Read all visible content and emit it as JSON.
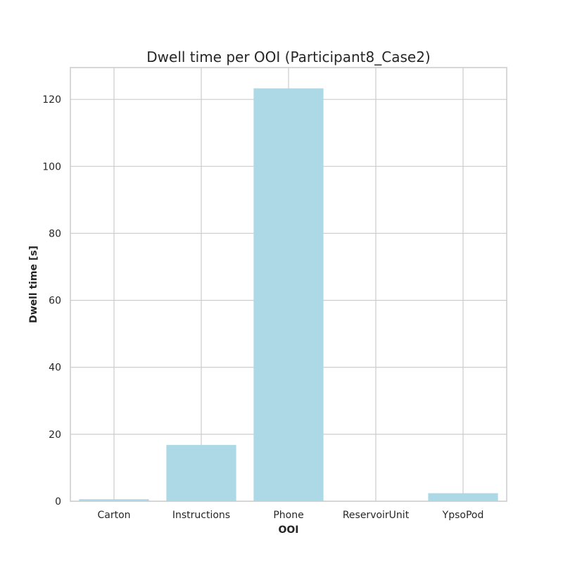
{
  "chart_data": {
    "type": "bar",
    "title": "Dwell time per OOI (Participant8_Case2)",
    "xlabel": "OOI",
    "ylabel": "Dwell time [s]",
    "categories": [
      "Carton",
      "Instructions",
      "Phone",
      "ReservoirUnit",
      "YpsoPod"
    ],
    "values": [
      0.6,
      16.8,
      123.3,
      0.0,
      2.4
    ],
    "ylim": [
      0,
      129.5
    ],
    "yticks": [
      0,
      20,
      40,
      60,
      80,
      100,
      120
    ],
    "ytick_labels": [
      "0",
      "20",
      "40",
      "60",
      "80",
      "100",
      "120"
    ],
    "grid": true,
    "legend": "none",
    "bar_color": "#add8e6",
    "grid_color": "#cccccc",
    "frame_color": "#cccccc"
  }
}
